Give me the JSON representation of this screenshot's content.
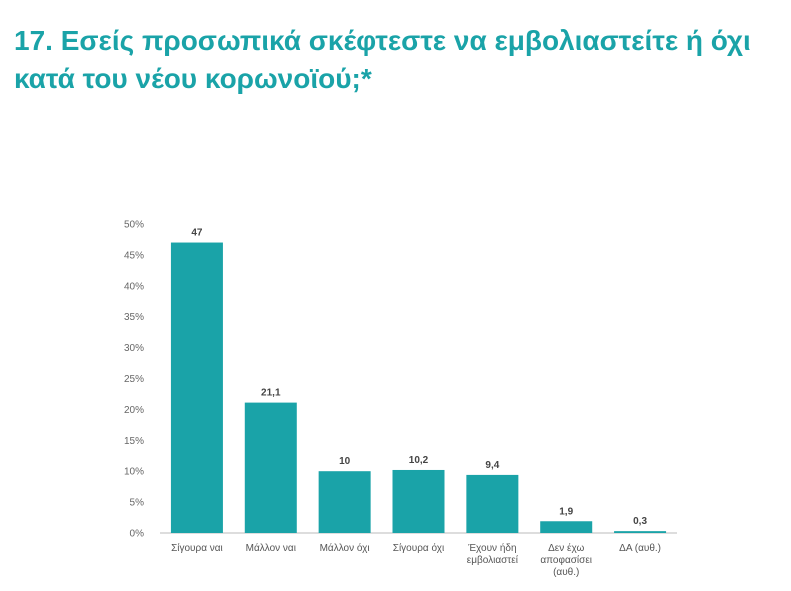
{
  "chart_data": {
    "type": "bar",
    "title": "17. Εσείς προσωπικά σκέφτεστε να εμβολιαστείτε ή όχι κατά του νέου κορωνοϊού;*",
    "categories": [
      [
        "Σίγουρα ναι"
      ],
      [
        "Μάλλον ναι"
      ],
      [
        "Μάλλον όχι"
      ],
      [
        "Σίγουρα όχι"
      ],
      [
        "Έχουν ήδη",
        "εμβολιαστεί"
      ],
      [
        "Δεν έχω",
        "αποφασίσει",
        "(αυθ.)"
      ],
      [
        "ΔΑ (αυθ.)"
      ]
    ],
    "values": [
      47,
      21.1,
      10,
      10.2,
      9.4,
      1.9,
      0.3
    ],
    "data_labels": [
      "47",
      "21,1",
      "10",
      "10,2",
      "9,4",
      "1,9",
      "0,3"
    ],
    "y_ticks": [
      "0%",
      "5%",
      "10%",
      "15%",
      "20%",
      "25%",
      "30%",
      "35%",
      "40%",
      "45%",
      "50%"
    ],
    "ylim": [
      0,
      50
    ],
    "grid": false,
    "colors": {
      "bar": "#1aa3a8",
      "title": "#1aa3a8",
      "axis": "#bbbbbb"
    }
  }
}
